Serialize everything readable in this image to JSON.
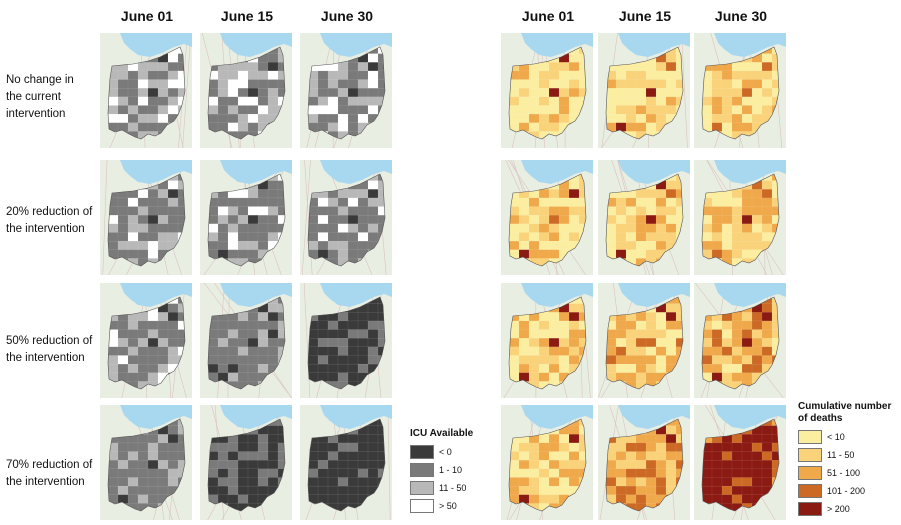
{
  "left": {
    "columns": [
      "June 01",
      "June 15",
      "June 30"
    ],
    "rows": [
      "No change in the current intervention",
      "20% reduction of the intervention",
      "50% reduction of the intervention",
      "70% reduction of the intervention"
    ],
    "legend": {
      "title": "ICU Available",
      "items": [
        {
          "label": "< 0",
          "color": "#3a3a3a"
        },
        {
          "label": "1 - 10",
          "color": "#7a7a7a"
        },
        {
          "label": "11 - 50",
          "color": "#b8b8b8"
        },
        {
          "label": "> 50",
          "color": "#ffffff"
        }
      ]
    },
    "intensity": [
      [
        0.3,
        0.3,
        0.32
      ],
      [
        0.32,
        0.33,
        0.38
      ],
      [
        0.35,
        0.5,
        0.85
      ],
      [
        0.45,
        0.8,
        1.0
      ]
    ]
  },
  "right": {
    "columns": [
      "June 01",
      "June 15",
      "June 30"
    ],
    "legend": {
      "title": "Cumulative number of deaths",
      "items": [
        {
          "label": "< 10",
          "color": "#fbeea0"
        },
        {
          "label": "11 - 50",
          "color": "#f9d27a"
        },
        {
          "label": "51 - 100",
          "color": "#efa84a"
        },
        {
          "label": "101 - 200",
          "color": "#cc6a25"
        },
        {
          "label": "> 200",
          "color": "#8a1a12"
        }
      ]
    },
    "intensity": [
      [
        0.1,
        0.14,
        0.18
      ],
      [
        0.13,
        0.17,
        0.22
      ],
      [
        0.16,
        0.25,
        0.4
      ],
      [
        0.22,
        0.45,
        0.85
      ]
    ]
  },
  "colors": {
    "lake": "#a8d8f0",
    "basemap": "#e9eee3",
    "road": "#d9c3c0"
  }
}
